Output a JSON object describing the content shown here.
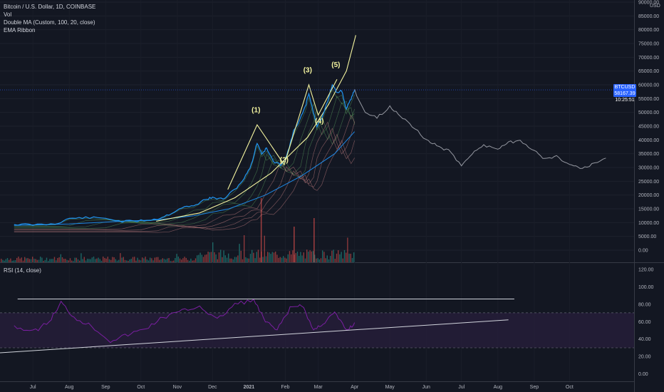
{
  "legend": {
    "symbol": "Bitcoin / U.S. Dollar, 1D, COINBASE",
    "vol": "Vol",
    "double_ma": "Double MA (Custom, 100, 20, close)",
    "ema_ribbon": "EMA Ribbon",
    "rsi": "RSI (14, close)"
  },
  "price_tag": {
    "symbol": "BTCUSD",
    "value": "58167.39",
    "countdown": "10:25:51"
  },
  "currency": "USD",
  "colors": {
    "background": "#131722",
    "price_line": "#2196f3",
    "projection_line": "#9598a1",
    "wave_line": "#f5f5a0",
    "ma_slow": "#1e88e5",
    "rsi_line": "#7b1fa2",
    "rsi_band": "#2a1f3d",
    "vol_up": "#26a69a",
    "vol_down": "#ef5350"
  },
  "chart_data": [
    {
      "type": "line",
      "title": "Bitcoin / U.S. Dollar, 1D, COINBASE",
      "y_axis_labels": [
        "90000.00",
        "85000.00",
        "80000.00",
        "75000.00",
        "70000.00",
        "65000.00",
        "60000.00",
        "55000.00",
        "50000.00",
        "45000.00",
        "40000.00",
        "35000.00",
        "30000.00",
        "25000.00",
        "20000.00",
        "15000.00",
        "10000.00",
        "5000.00",
        "0.00"
      ],
      "x_axis_labels": [
        "Jul",
        "Aug",
        "Sep",
        "Oct",
        "Nov",
        "Dec",
        "2021",
        "Feb",
        "Mar",
        "Apr",
        "May",
        "Jun",
        "Jul",
        "Aug",
        "Sep",
        "Oct"
      ],
      "ylim": [
        0,
        90000
      ],
      "series": [
        {
          "role": "price",
          "x": [
            "2020-06-15",
            "2020-07-01",
            "2020-07-20",
            "2020-08-01",
            "2020-08-15",
            "2020-09-01",
            "2020-09-15",
            "2020-10-01",
            "2020-10-15",
            "2020-10-25",
            "2020-11-05",
            "2020-11-15",
            "2020-11-25",
            "2020-12-01",
            "2020-12-10",
            "2020-12-20",
            "2020-12-28",
            "2021-01-03",
            "2021-01-08",
            "2021-01-12",
            "2021-01-16",
            "2021-01-22",
            "2021-01-28",
            "2021-02-02",
            "2021-02-08",
            "2021-02-14",
            "2021-02-18",
            "2021-02-21",
            "2021-02-25",
            "2021-02-28",
            "2021-03-04",
            "2021-03-09",
            "2021-03-13",
            "2021-03-17",
            "2021-03-21",
            "2021-03-25",
            "2021-03-29",
            "2021-04-01"
          ],
          "y": [
            9400,
            9200,
            9500,
            11500,
            11800,
            11600,
            10400,
            10700,
            11300,
            13000,
            15500,
            16000,
            18500,
            19000,
            18500,
            22000,
            26000,
            31000,
            39000,
            35000,
            37000,
            32000,
            31000,
            34000,
            43000,
            48000,
            52000,
            57000,
            50000,
            45000,
            48000,
            54000,
            60000,
            57000,
            58000,
            51000,
            55000,
            58167
          ]
        },
        {
          "role": "projection",
          "x": [
            "2021-04-01",
            "2021-04-10",
            "2021-04-20",
            "2021-05-01",
            "2021-05-10",
            "2021-05-20",
            "2021-06-01",
            "2021-06-10",
            "2021-06-20",
            "2021-07-01",
            "2021-07-10",
            "2021-07-20",
            "2021-08-01",
            "2021-08-10",
            "2021-08-20",
            "2021-09-01",
            "2021-09-10",
            "2021-09-20",
            "2021-10-01",
            "2021-10-10",
            "2021-10-20",
            "2021-11-01"
          ],
          "y": [
            58000,
            50000,
            48000,
            52000,
            49000,
            45000,
            40000,
            38000,
            36000,
            31000,
            35000,
            38000,
            37000,
            39000,
            40000,
            36000,
            33000,
            34000,
            31000,
            30000,
            31000,
            33000
          ]
        },
        {
          "role": "ma_slow",
          "x": [
            "2020-06-15",
            "2020-08-01",
            "2020-09-15",
            "2020-10-15",
            "2020-11-15",
            "2020-12-15",
            "2021-01-15",
            "2021-02-15",
            "2021-03-15",
            "2021-04-01"
          ],
          "y": [
            9000,
            9500,
            10500,
            11000,
            12500,
            15000,
            20000,
            27000,
            35000,
            43000
          ]
        },
        {
          "role": "wave",
          "x": [
            "2020-12-14",
            "2021-01-08",
            "2021-01-31",
            "2021-02-21",
            "2021-03-01",
            "2021-03-17"
          ],
          "y": [
            22000,
            45500,
            31000,
            60000,
            49000,
            62000
          ]
        },
        {
          "role": "curve",
          "x": [
            "2020-10-14",
            "2020-11-20",
            "2020-12-20",
            "2021-01-20",
            "2021-02-20",
            "2021-03-10",
            "2021-03-25",
            "2021-04-02"
          ],
          "y": [
            10500,
            13500,
            19000,
            28000,
            41000,
            53000,
            65000,
            78000
          ]
        }
      ],
      "annotations": [
        {
          "text": "(1)",
          "x": "2021-01-07",
          "y": 50000
        },
        {
          "text": "(2)",
          "x": "2021-01-31",
          "y": 32000
        },
        {
          "text": "(3)",
          "x": "2021-02-20",
          "y": 64500
        },
        {
          "text": "(4)",
          "x": "2021-03-02",
          "y": 46000
        },
        {
          "text": "(5)",
          "x": "2021-03-16",
          "y": 66500
        }
      ]
    },
    {
      "type": "line",
      "title": "RSI (14, close)",
      "y_axis_labels": [
        "120.00",
        "100.00",
        "80.00",
        "60.00",
        "40.00",
        "20.00",
        "0.00"
      ],
      "ylim": [
        0,
        120
      ],
      "bands": [
        30,
        70
      ],
      "horizontal_line": 86,
      "trendline": {
        "x": [
          "2020-06-01",
          "2021-08-10"
        ],
        "y": [
          24,
          62
        ]
      },
      "series": [
        {
          "role": "rsi",
          "x": [
            "2020-06-15",
            "2020-07-01",
            "2020-07-15",
            "2020-07-25",
            "2020-08-05",
            "2020-08-20",
            "2020-09-05",
            "2020-09-20",
            "2020-10-05",
            "2020-10-20",
            "2020-11-05",
            "2020-11-20",
            "2020-12-05",
            "2020-12-20",
            "2021-01-05",
            "2021-01-15",
            "2021-01-25",
            "2021-02-05",
            "2021-02-15",
            "2021-02-25",
            "2021-03-05",
            "2021-03-15",
            "2021-03-25",
            "2021-04-01"
          ],
          "y": [
            55,
            48,
            60,
            82,
            65,
            55,
            38,
            45,
            52,
            65,
            72,
            78,
            62,
            80,
            85,
            60,
            50,
            75,
            80,
            50,
            58,
            70,
            50,
            58
          ]
        }
      ]
    }
  ]
}
